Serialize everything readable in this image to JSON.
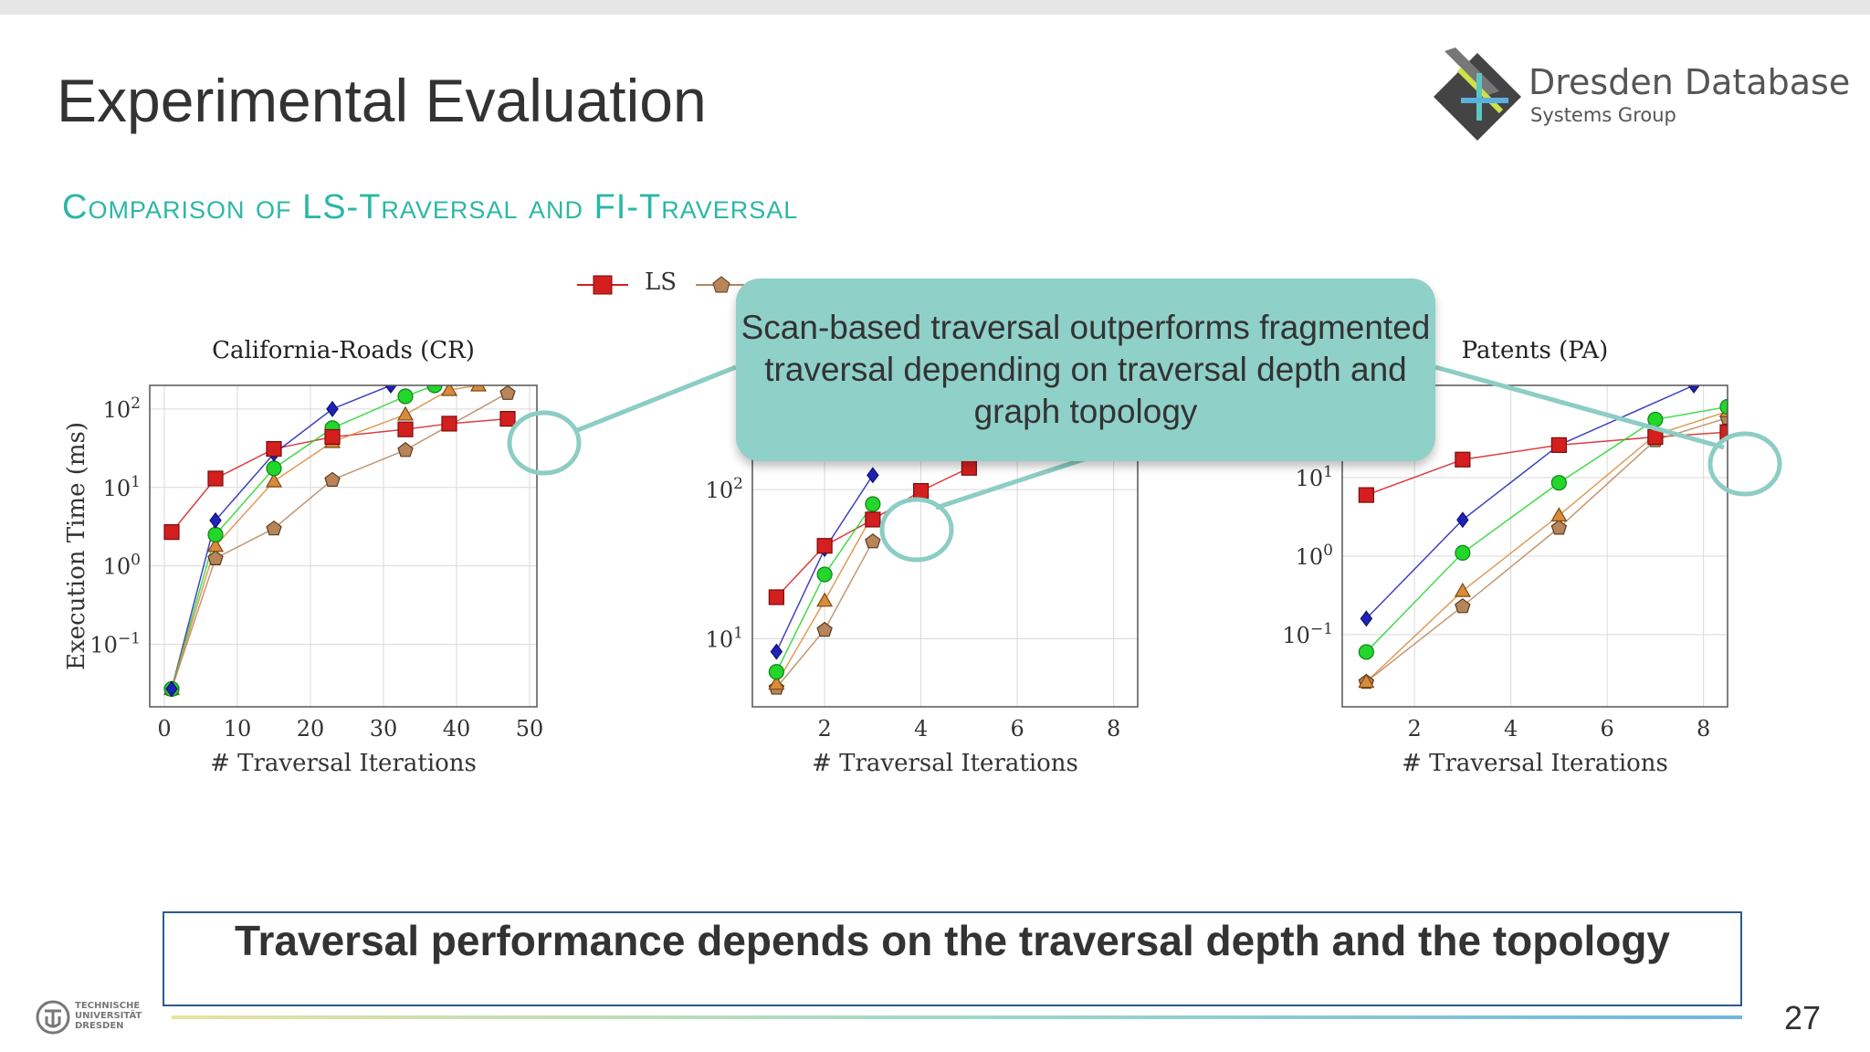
{
  "slide": {
    "title": "Experimental Evaluation",
    "subtitle": "Comparison of LS-Traversal and FI-Traversal",
    "page_number": "27",
    "conclusion": "Traversal performance depends on the traversal depth and the topology",
    "callout": "Scan-based traversal outperforms fragmented traversal depending on traversal depth and graph topology"
  },
  "logo": {
    "line1": "Dresden Database",
    "line2": "Systems Group"
  },
  "university": {
    "line1": "TECHNISCHE",
    "line2": "UNIVERSITÄT",
    "line3": "DRESDEN"
  },
  "legend": {
    "entries": [
      "LS"
    ]
  },
  "colors": {
    "accent": "#2bb7a6",
    "ls": "#d41f1f",
    "blue": "#1e22b8",
    "green": "#22d62a",
    "orange": "#d98b3a",
    "brown": "#b8845a",
    "highlight": "#8ccdc4"
  },
  "chart_data": [
    {
      "type": "line",
      "title": "California-Roads (CR)",
      "xlabel": "# Traversal Iterations",
      "ylabel": "Execution Time (ms)",
      "yscale": "log",
      "xlim": [
        -2,
        51
      ],
      "ylim": [
        0.016,
        200
      ],
      "xticks": [
        "0",
        "10",
        "20",
        "30",
        "40",
        "50"
      ],
      "yticks": [
        "10^2",
        "10^1",
        "10^0",
        "10^-1"
      ],
      "grid": true,
      "series": [
        {
          "name": "LS",
          "color": "#d41f1f",
          "marker": "square",
          "x": [
            1,
            7,
            15,
            23,
            33,
            39,
            47
          ],
          "y": [
            2.7,
            13,
            31,
            44,
            55,
            65,
            75
          ]
        },
        {
          "color": "#1e22b8",
          "marker": "diamond",
          "x": [
            1,
            7,
            15,
            23,
            31
          ],
          "y": [
            0.027,
            3.8,
            27,
            100,
            200
          ]
        },
        {
          "color": "#22d62a",
          "marker": "circle",
          "x": [
            1,
            7,
            15,
            23,
            33,
            37
          ],
          "y": [
            0.027,
            2.5,
            17.5,
            57,
            145,
            200
          ]
        },
        {
          "color": "#d98b3a",
          "marker": "triangle",
          "x": [
            1,
            7,
            15,
            23,
            33,
            39,
            43
          ],
          "y": [
            0.027,
            1.8,
            12,
            38,
            85,
            175,
            200
          ]
        },
        {
          "color": "#b8845a",
          "marker": "pentagon",
          "x": [
            1,
            7,
            15,
            23,
            33,
            47
          ],
          "y": [
            0.027,
            1.25,
            3,
            12.5,
            30,
            160
          ]
        }
      ]
    },
    {
      "type": "line",
      "title": "",
      "xlabel": "# Traversal Iterations",
      "ylabel": "",
      "yscale": "log",
      "xlim": [
        0.5,
        8.5
      ],
      "ylim": [
        3.5,
        500
      ],
      "xticks": [
        "2",
        "4",
        "6",
        "8"
      ],
      "yticks": [
        "10^2",
        "10^1"
      ],
      "grid": true,
      "series": [
        {
          "name": "LS",
          "color": "#d41f1f",
          "marker": "square",
          "x": [
            1,
            2,
            3,
            4,
            5
          ],
          "y": [
            19,
            42,
            63,
            98,
            140
          ]
        },
        {
          "color": "#1e22b8",
          "marker": "diamond",
          "x": [
            1,
            2,
            3
          ],
          "y": [
            8.2,
            40,
            125
          ]
        },
        {
          "color": "#22d62a",
          "marker": "circle",
          "x": [
            1,
            2,
            3
          ],
          "y": [
            6,
            27,
            80
          ]
        },
        {
          "color": "#d98b3a",
          "marker": "triangle",
          "x": [
            1,
            2,
            3
          ],
          "y": [
            5,
            18,
            68
          ]
        },
        {
          "color": "#b8845a",
          "marker": "pentagon",
          "x": [
            1,
            2,
            3
          ],
          "y": [
            4.7,
            11.5,
            45
          ]
        }
      ]
    },
    {
      "type": "line",
      "title": "Patents (PA)",
      "xlabel": "# Traversal Iterations",
      "ylabel": "",
      "yscale": "log",
      "xlim": [
        0.5,
        8.5
      ],
      "ylim": [
        0.012,
        150
      ],
      "xticks": [
        "2",
        "4",
        "6",
        "8"
      ],
      "yticks": [
        "10^1",
        "10^0",
        "10^-1"
      ],
      "grid": true,
      "series": [
        {
          "name": "LS",
          "color": "#d41f1f",
          "marker": "square",
          "x": [
            1,
            3,
            5,
            7,
            8.5
          ],
          "y": [
            6,
            17,
            26,
            33,
            38
          ]
        },
        {
          "color": "#1e22b8",
          "marker": "diamond",
          "x": [
            1,
            3,
            5,
            7.8
          ],
          "y": [
            0.16,
            2.9,
            26,
            150
          ]
        },
        {
          "color": "#22d62a",
          "marker": "circle",
          "x": [
            1,
            3,
            5,
            7,
            8.5
          ],
          "y": [
            0.06,
            1.1,
            8.6,
            55,
            80
          ]
        },
        {
          "color": "#d98b3a",
          "marker": "triangle",
          "x": [
            1,
            3,
            5,
            7,
            8.5
          ],
          "y": [
            0.025,
            0.36,
            3.3,
            35,
            70
          ]
        },
        {
          "color": "#b8845a",
          "marker": "pentagon",
          "x": [
            1,
            3,
            5,
            7,
            8.5
          ],
          "y": [
            0.025,
            0.23,
            2.3,
            30,
            58
          ]
        }
      ]
    }
  ]
}
